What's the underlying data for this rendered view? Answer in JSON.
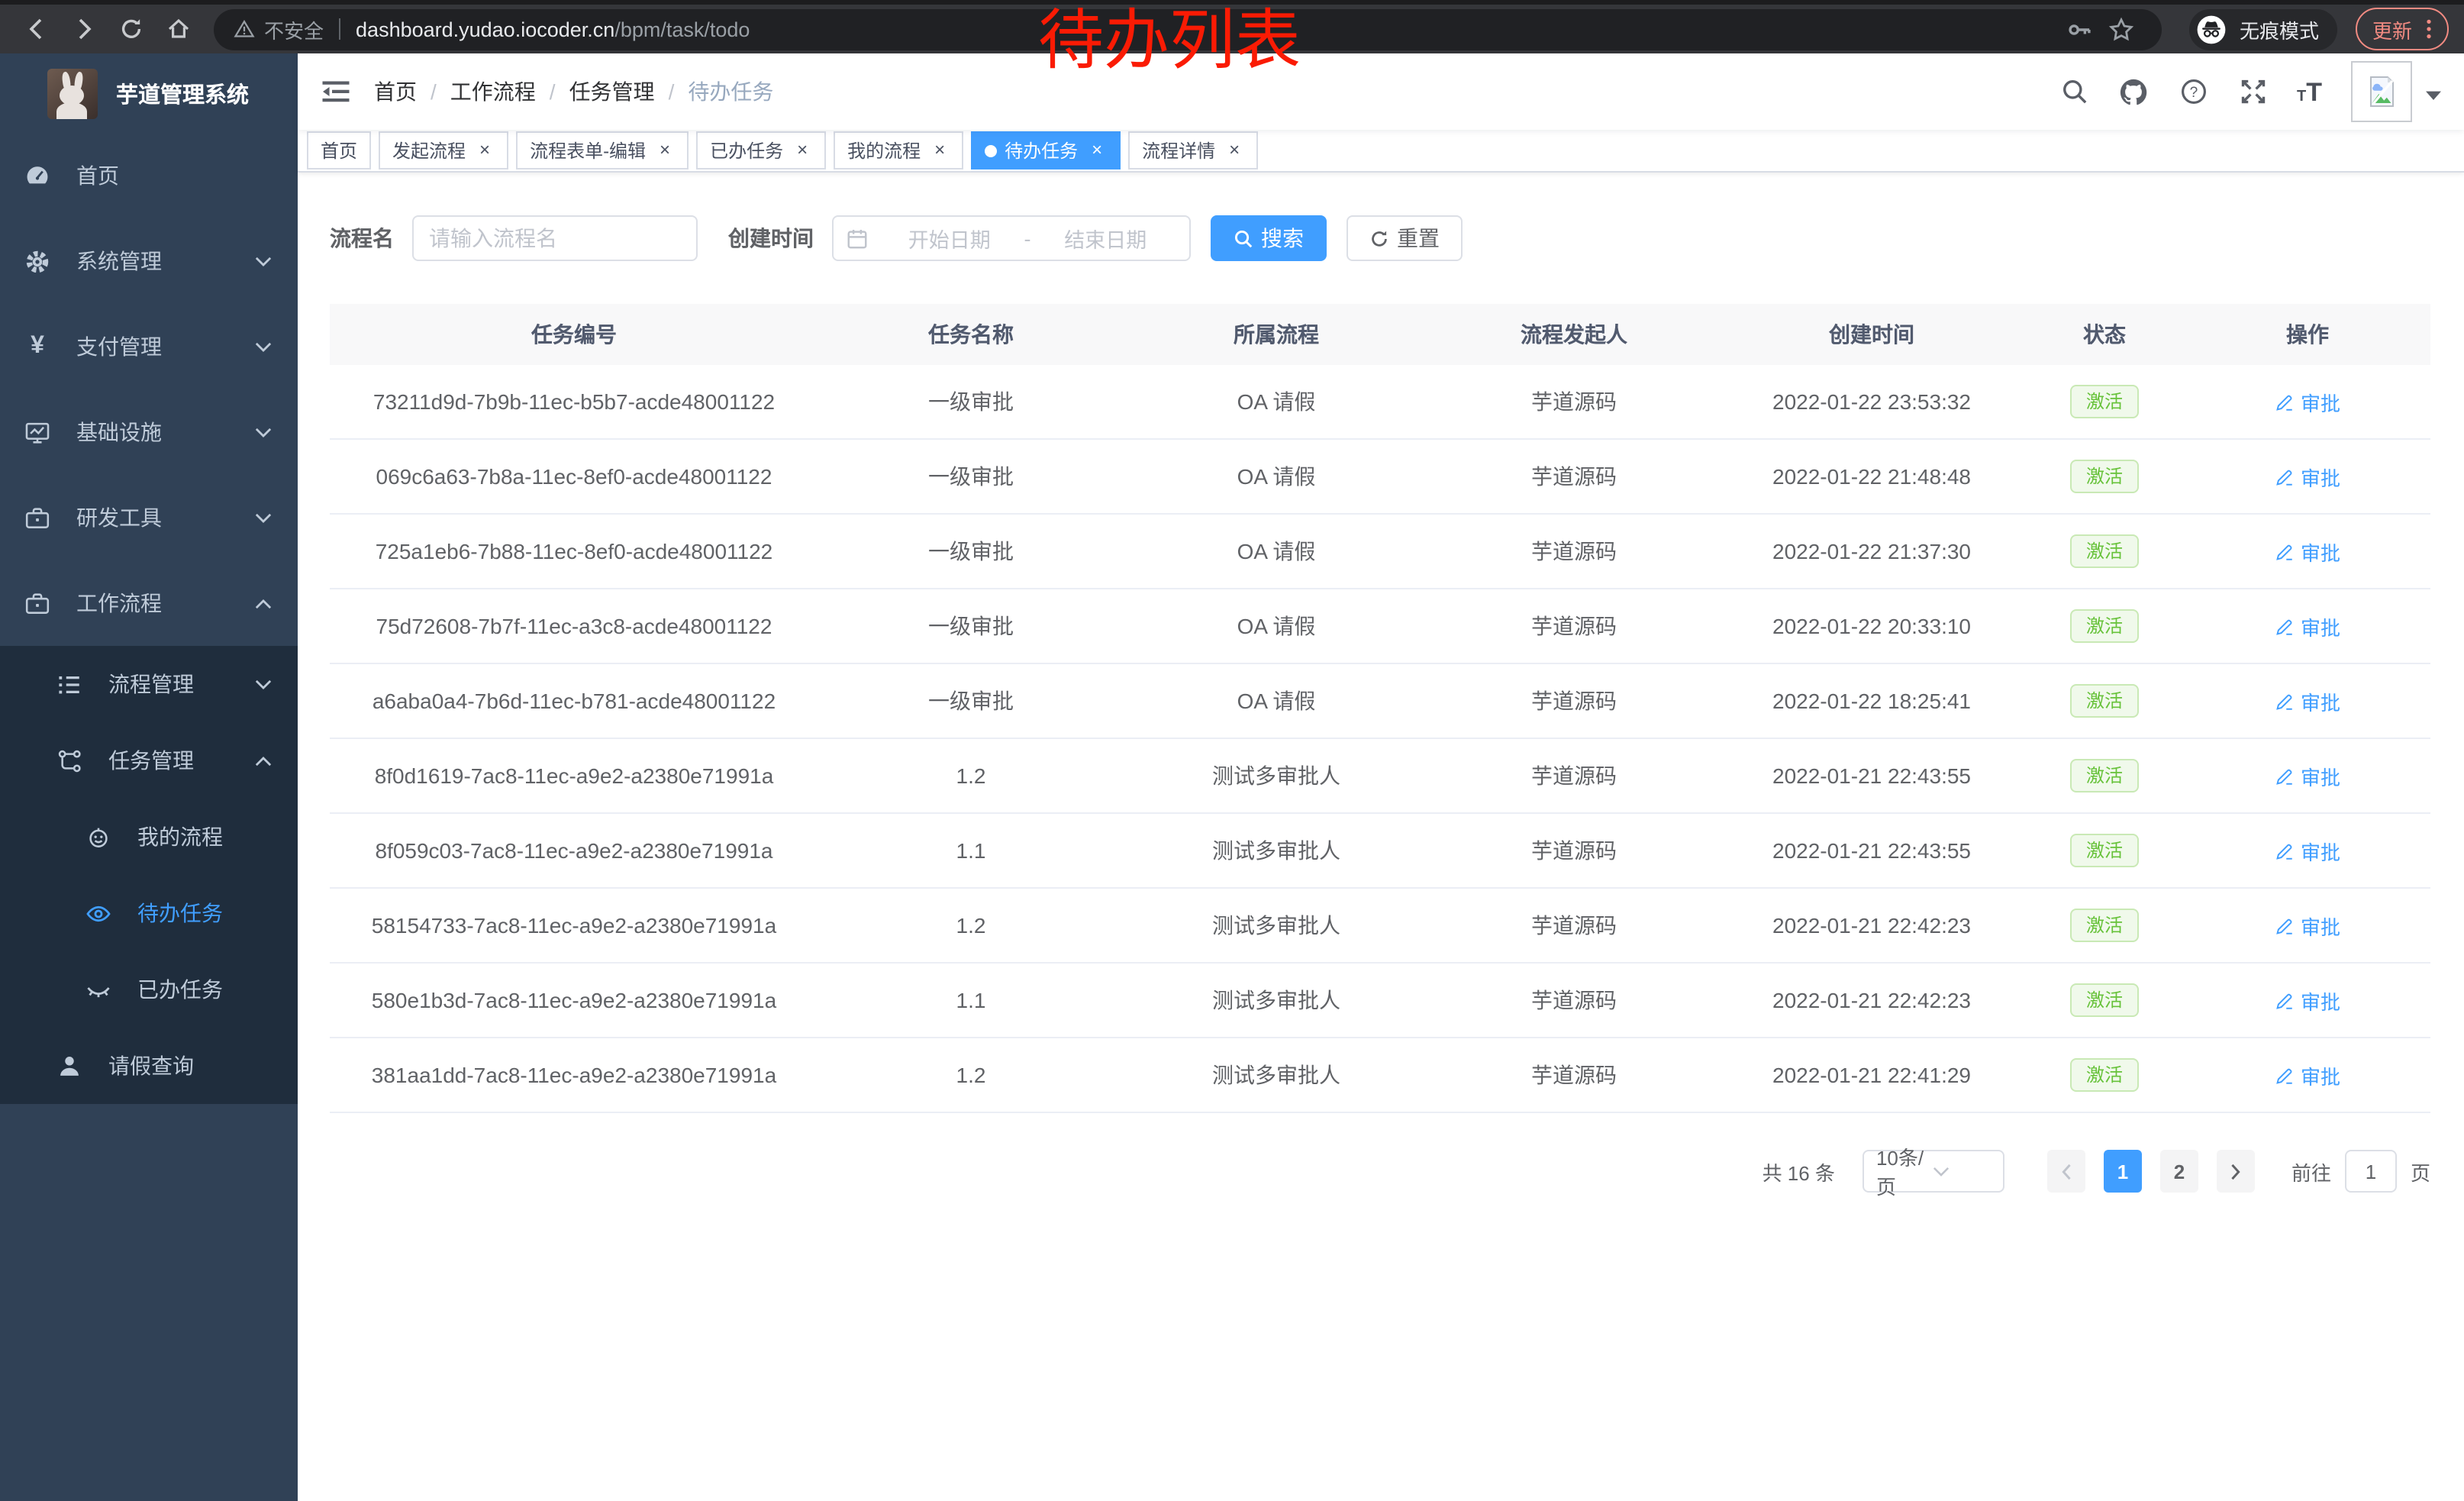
{
  "colors": {
    "accent": "#409eff",
    "success": "#67c23a",
    "annotation": "#fa1b04"
  },
  "annotation": {
    "text": "待办列表"
  },
  "browser": {
    "security_label": "不安全",
    "url_host": "dashboard.yudao.iocoder.cn",
    "url_path": "/bpm/task/todo",
    "incognito_label": "无痕模式",
    "update_label": "更新"
  },
  "sidebar": {
    "title": "芋道管理系统",
    "items": [
      {
        "key": "home",
        "label": "首页",
        "icon": "dashboard-icon",
        "level": 0
      },
      {
        "key": "system-management",
        "label": "系统管理",
        "icon": "gear-icon",
        "level": 0,
        "chevron": "down"
      },
      {
        "key": "payment-management",
        "label": "支付管理",
        "icon": "yen-icon",
        "level": 0,
        "chevron": "down"
      },
      {
        "key": "infrastructure",
        "label": "基础设施",
        "icon": "monitor-icon",
        "level": 0,
        "chevron": "down"
      },
      {
        "key": "dev-tools",
        "label": "研发工具",
        "icon": "briefcase-icon",
        "level": 0,
        "chevron": "down"
      },
      {
        "key": "workflow",
        "label": "工作流程",
        "icon": "briefcase-icon",
        "level": 0,
        "chevron": "up"
      },
      {
        "key": "process-management",
        "label": "流程管理",
        "icon": "list-icon",
        "level": 1,
        "chevron": "down"
      },
      {
        "key": "task-management",
        "label": "任务管理",
        "icon": "tree-icon",
        "level": 1,
        "chevron": "up"
      },
      {
        "key": "my-process",
        "label": "我的流程",
        "icon": "robot-icon",
        "level": 2
      },
      {
        "key": "todo-tasks",
        "label": "待办任务",
        "icon": "eye-open-icon",
        "level": 2,
        "active": true
      },
      {
        "key": "done-tasks",
        "label": "已办任务",
        "icon": "eye-closed-icon",
        "level": 2
      },
      {
        "key": "leave-query",
        "label": "请假查询",
        "icon": "user-icon",
        "level": 1
      }
    ]
  },
  "breadcrumb": [
    "首页",
    "工作流程",
    "任务管理",
    "待办任务"
  ],
  "tags": [
    {
      "key": "home",
      "label": "首页",
      "closable": false,
      "active": false
    },
    {
      "key": "start-process",
      "label": "发起流程",
      "closable": true,
      "active": false
    },
    {
      "key": "process-form-edit",
      "label": "流程表单-编辑",
      "closable": true,
      "active": false
    },
    {
      "key": "done-tasks",
      "label": "已办任务",
      "closable": true,
      "active": false
    },
    {
      "key": "my-process",
      "label": "我的流程",
      "closable": true,
      "active": false
    },
    {
      "key": "todo-tasks",
      "label": "待办任务",
      "closable": true,
      "active": true
    },
    {
      "key": "process-detail",
      "label": "流程详情",
      "closable": true,
      "active": false
    }
  ],
  "filter": {
    "name_label": "流程名",
    "name_placeholder": "请输入流程名",
    "time_label": "创建时间",
    "start_placeholder": "开始日期",
    "range_separator": "-",
    "end_placeholder": "结束日期",
    "search_label": "搜索",
    "reset_label": "重置"
  },
  "table": {
    "headers": [
      "任务编号",
      "任务名称",
      "所属流程",
      "流程发起人",
      "创建时间",
      "状态",
      "操作"
    ],
    "status_label": "激活",
    "action_label": "审批",
    "rows": [
      {
        "id": "73211d9d-7b9b-11ec-b5b7-acde48001122",
        "name": "一级审批",
        "process": "OA 请假",
        "initiator": "芋道源码",
        "created": "2022-01-22 23:53:32"
      },
      {
        "id": "069c6a63-7b8a-11ec-8ef0-acde48001122",
        "name": "一级审批",
        "process": "OA 请假",
        "initiator": "芋道源码",
        "created": "2022-01-22 21:48:48"
      },
      {
        "id": "725a1eb6-7b88-11ec-8ef0-acde48001122",
        "name": "一级审批",
        "process": "OA 请假",
        "initiator": "芋道源码",
        "created": "2022-01-22 21:37:30"
      },
      {
        "id": "75d72608-7b7f-11ec-a3c8-acde48001122",
        "name": "一级审批",
        "process": "OA 请假",
        "initiator": "芋道源码",
        "created": "2022-01-22 20:33:10"
      },
      {
        "id": "a6aba0a4-7b6d-11ec-b781-acde48001122",
        "name": "一级审批",
        "process": "OA 请假",
        "initiator": "芋道源码",
        "created": "2022-01-22 18:25:41"
      },
      {
        "id": "8f0d1619-7ac8-11ec-a9e2-a2380e71991a",
        "name": "1.2",
        "process": "测试多审批人",
        "initiator": "芋道源码",
        "created": "2022-01-21 22:43:55"
      },
      {
        "id": "8f059c03-7ac8-11ec-a9e2-a2380e71991a",
        "name": "1.1",
        "process": "测试多审批人",
        "initiator": "芋道源码",
        "created": "2022-01-21 22:43:55"
      },
      {
        "id": "58154733-7ac8-11ec-a9e2-a2380e71991a",
        "name": "1.2",
        "process": "测试多审批人",
        "initiator": "芋道源码",
        "created": "2022-01-21 22:42:23"
      },
      {
        "id": "580e1b3d-7ac8-11ec-a9e2-a2380e71991a",
        "name": "1.1",
        "process": "测试多审批人",
        "initiator": "芋道源码",
        "created": "2022-01-21 22:42:23"
      },
      {
        "id": "381aa1dd-7ac8-11ec-a9e2-a2380e71991a",
        "name": "1.2",
        "process": "测试多审批人",
        "initiator": "芋道源码",
        "created": "2022-01-21 22:41:29"
      }
    ]
  },
  "pagination": {
    "total": "共 16 条",
    "page_size": "10条/页",
    "pages": [
      "1",
      "2"
    ],
    "active_page": "1",
    "goto_label": "前往",
    "goto_value": "1",
    "goto_unit": "页"
  }
}
